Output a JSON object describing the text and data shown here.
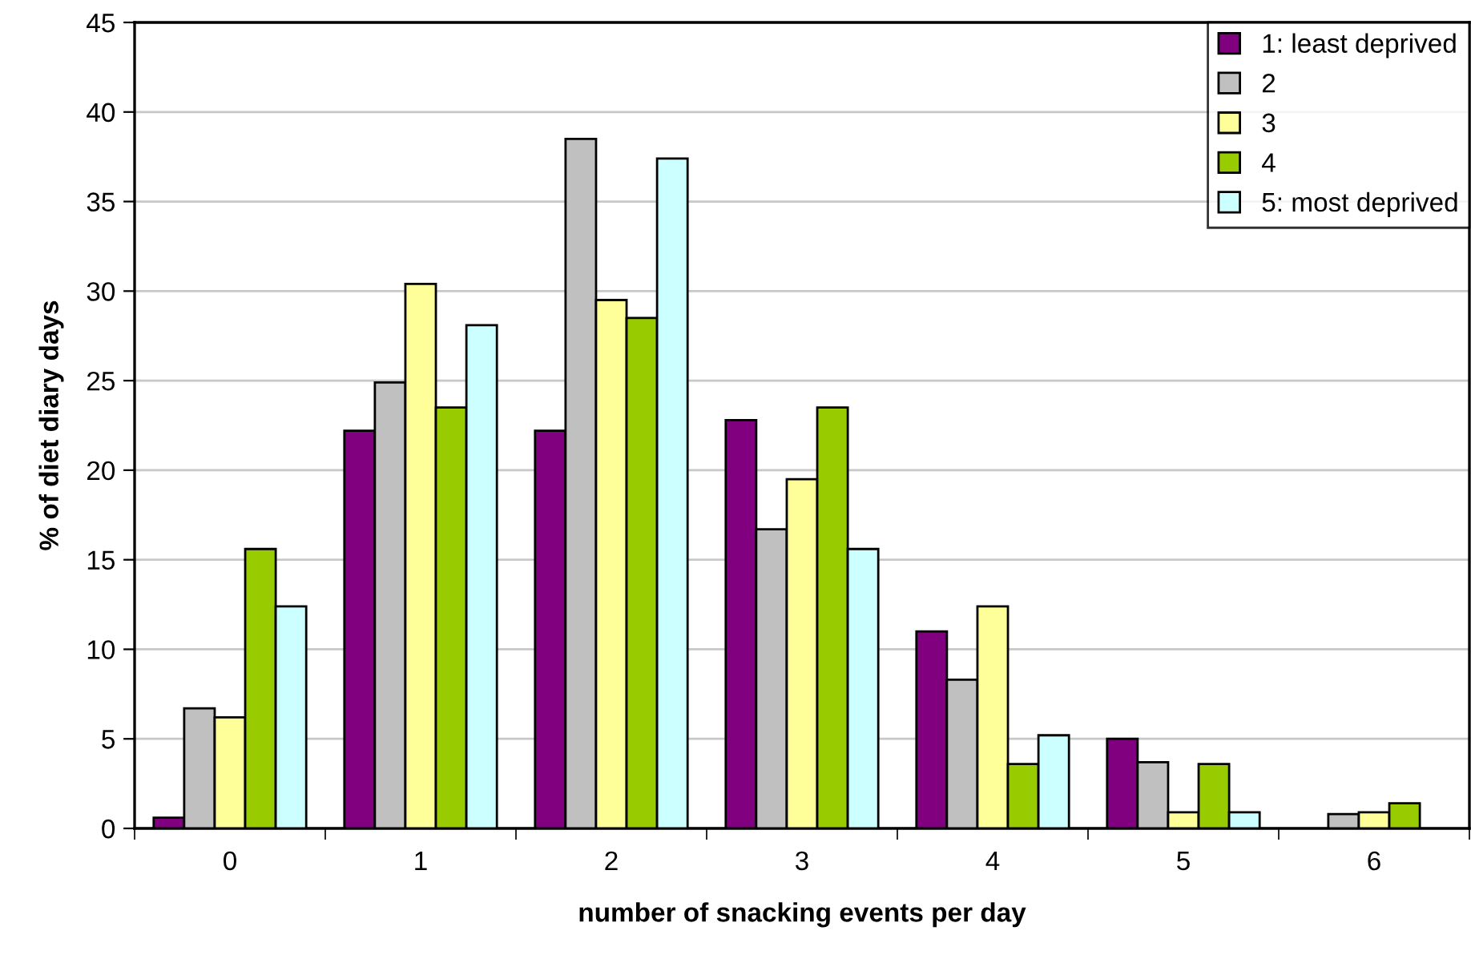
{
  "chart_data": {
    "type": "bar",
    "xlabel": "number of snacking events per day",
    "ylabel": "% of diet diary days",
    "categories": [
      "0",
      "1",
      "2",
      "3",
      "4",
      "5",
      "6"
    ],
    "series": [
      {
        "name": "1: least deprived",
        "color": "#800080",
        "values": [
          0.6,
          22.2,
          22.2,
          22.8,
          11.0,
          5.0,
          null
        ]
      },
      {
        "name": "2",
        "color": "#c0c0c0",
        "values": [
          6.7,
          24.9,
          38.5,
          16.7,
          8.3,
          3.7,
          0.8
        ]
      },
      {
        "name": "3",
        "color": "#ffff99",
        "values": [
          6.2,
          30.4,
          29.5,
          19.5,
          12.4,
          0.9,
          0.9
        ]
      },
      {
        "name": "4",
        "color": "#99cc00",
        "values": [
          15.6,
          23.5,
          28.5,
          23.5,
          3.6,
          3.6,
          1.4
        ]
      },
      {
        "name": "5: most deprived",
        "color": "#ccffff",
        "values": [
          12.4,
          28.1,
          37.4,
          15.6,
          5.2,
          0.9,
          null
        ]
      }
    ],
    "ylim": [
      0,
      45
    ],
    "yticks": [
      0,
      5,
      10,
      15,
      20,
      25,
      30,
      35,
      40,
      45
    ],
    "grid": "y",
    "legend": "top right"
  }
}
